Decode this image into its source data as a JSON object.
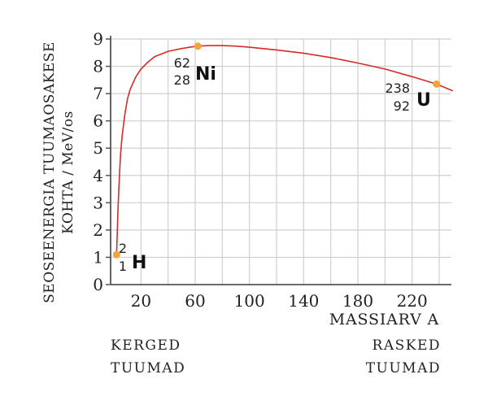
{
  "chart_data": {
    "type": "line",
    "ylabel_lines": [
      "SEOSEENERGIA TUUMAOSAKESE",
      "KOHTA / MeV/os"
    ],
    "xlabel": "MASSIARV A",
    "xlim": [
      0,
      250
    ],
    "ylim": [
      0,
      9
    ],
    "x_ticks": [
      20,
      60,
      100,
      140,
      180,
      220
    ],
    "y_ticks": [
      0,
      1,
      2,
      3,
      4,
      5,
      6,
      7,
      8,
      9
    ],
    "grid": true,
    "curve_color": "#d42b2b",
    "point_color": "#f2a33a",
    "series": [
      {
        "x": [
          2,
          2.5,
          3,
          4,
          5,
          6,
          8,
          10,
          12,
          16,
          20,
          25,
          30,
          40,
          50,
          56,
          62,
          70,
          80,
          90,
          100,
          120,
          140,
          160,
          180,
          200,
          220,
          238,
          250
        ],
        "y": [
          1.1,
          1.9,
          2.7,
          3.9,
          4.8,
          5.4,
          6.2,
          6.8,
          7.15,
          7.6,
          7.9,
          8.15,
          8.35,
          8.55,
          8.65,
          8.7,
          8.74,
          8.76,
          8.76,
          8.74,
          8.7,
          8.6,
          8.48,
          8.32,
          8.12,
          7.9,
          7.62,
          7.35,
          7.1
        ]
      }
    ],
    "points": [
      {
        "x": 2,
        "y": 1.1,
        "mass": "2",
        "charge": "1",
        "symbol": "H"
      },
      {
        "x": 62,
        "y": 8.74,
        "mass": "62",
        "charge": "28",
        "symbol": "Ni"
      },
      {
        "x": 238,
        "y": 7.35,
        "mass": "238",
        "charge": "92",
        "symbol": "U"
      }
    ],
    "notes": [
      {
        "lines": [
          "KERGED",
          "TUUMAD"
        ],
        "align": "left"
      },
      {
        "lines": [
          "RASKED",
          "TUUMAD"
        ],
        "align": "right"
      }
    ]
  }
}
